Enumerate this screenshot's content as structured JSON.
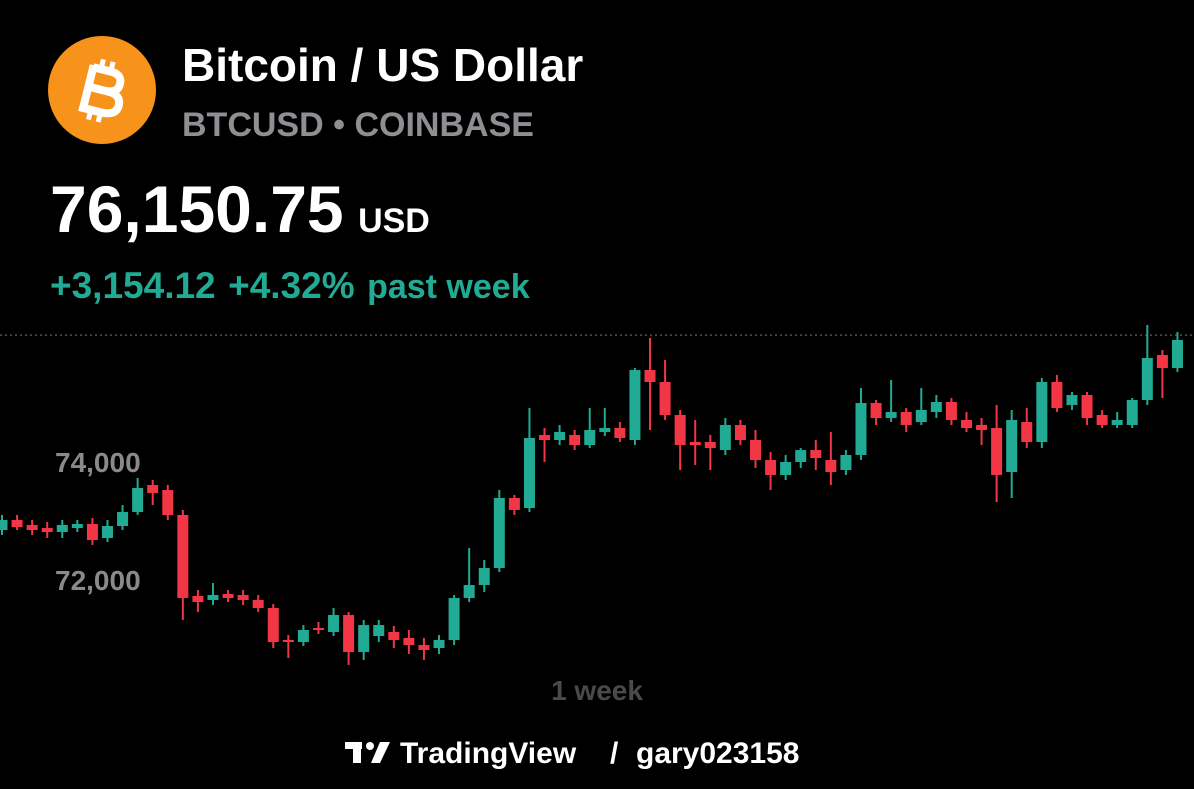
{
  "header": {
    "title": "Bitcoin / US Dollar",
    "subtitle": "BTCUSD • COINBASE",
    "price": "76,150.75",
    "currency": "USD",
    "change": "+3,154.12",
    "change_percent": "+4.32%",
    "period": "past week"
  },
  "chart_data": {
    "type": "candlestick",
    "timeframe": "1 week",
    "up_color": "#22ab94",
    "down_color": "#f23645",
    "last_price": 76150.75,
    "ylim": [
      70500,
      76400
    ],
    "yticks": [
      {
        "value": 74000,
        "label": "74,000"
      },
      {
        "value": 72000,
        "label": "72,000"
      }
    ],
    "grid": false,
    "open": [
      72847,
      73017,
      72932,
      72881,
      72813,
      72881,
      72949,
      72712,
      72915,
      73153,
      73610,
      73525,
      73102,
      71729,
      71661,
      71763,
      71746,
      71661,
      71525,
      70983,
      70949,
      71187,
      71119,
      71407,
      70780,
      71051,
      71119,
      71017,
      70898,
      70847,
      70983,
      71695,
      71915,
      72203,
      73390,
      73220,
      74458,
      74373,
      74458,
      74288,
      74509,
      74576,
      74373,
      75559,
      75356,
      74797,
      74339,
      74339,
      74203,
      74627,
      74373,
      74034,
      73780,
      74000,
      74203,
      74034,
      73864,
      74119,
      75000,
      74746,
      74848,
      74678,
      74848,
      75017,
      74712,
      74627,
      74576,
      73831,
      74678,
      74339,
      75356,
      74966,
      75136,
      74797,
      74627,
      74627,
      75051,
      75814,
      75593
    ],
    "high": [
      73102,
      73102,
      73017,
      72983,
      73017,
      73017,
      73051,
      73017,
      73271,
      73729,
      73695,
      73610,
      73187,
      71831,
      71949,
      71831,
      71831,
      71746,
      71593,
      71068,
      71237,
      71288,
      71525,
      71458,
      71322,
      71322,
      71220,
      71153,
      71017,
      71068,
      71746,
      72542,
      72339,
      73525,
      73441,
      74915,
      74576,
      74627,
      74543,
      74915,
      74915,
      74678,
      75593,
      76102,
      75729,
      74881,
      74712,
      74458,
      74746,
      74712,
      74542,
      74170,
      74119,
      74237,
      74373,
      74508,
      74203,
      75254,
      75051,
      75390,
      74915,
      75254,
      75136,
      75085,
      74848,
      74746,
      74966,
      74881,
      74915,
      75424,
      75475,
      75187,
      75187,
      74881,
      74848,
      75085,
      76322,
      75898,
      76203
    ],
    "low": [
      72763,
      72847,
      72763,
      72712,
      72712,
      72813,
      72593,
      72644,
      72847,
      73102,
      73271,
      73017,
      71322,
      71458,
      71576,
      71627,
      71576,
      71458,
      70847,
      70678,
      70881,
      71085,
      71051,
      70559,
      70644,
      70949,
      70847,
      70746,
      70644,
      70746,
      70898,
      71627,
      71797,
      72135,
      73102,
      73153,
      74000,
      74288,
      74203,
      74237,
      74441,
      74339,
      74288,
      74542,
      74712,
      73864,
      73949,
      73864,
      74119,
      74288,
      73898,
      73525,
      73695,
      73898,
      73864,
      73610,
      73780,
      74034,
      74627,
      74678,
      74509,
      74627,
      74746,
      74627,
      74509,
      74288,
      73322,
      73390,
      74237,
      74237,
      74848,
      74881,
      74627,
      74576,
      74576,
      74576,
      74966,
      75085,
      75526
    ],
    "close": [
      73017,
      72898,
      72847,
      72813,
      72932,
      72949,
      72678,
      72915,
      73153,
      73559,
      73475,
      73102,
      71695,
      71627,
      71746,
      71695,
      71661,
      71525,
      70949,
      70949,
      71153,
      71153,
      71407,
      70780,
      71237,
      71237,
      70983,
      70898,
      70814,
      70983,
      71695,
      71915,
      72203,
      73390,
      73187,
      74407,
      74373,
      74509,
      74288,
      74542,
      74576,
      74407,
      75559,
      75356,
      74797,
      74288,
      74288,
      74237,
      74627,
      74373,
      74034,
      73780,
      74000,
      74203,
      74068,
      73831,
      74119,
      75000,
      74746,
      74848,
      74627,
      74881,
      75017,
      74712,
      74576,
      74542,
      73780,
      74712,
      74339,
      75356,
      74915,
      75136,
      74746,
      74627,
      74712,
      75051,
      75763,
      75593,
      76068
    ]
  },
  "footer": {
    "brand": "TradingView",
    "separator": "/",
    "user": "gary023158"
  }
}
